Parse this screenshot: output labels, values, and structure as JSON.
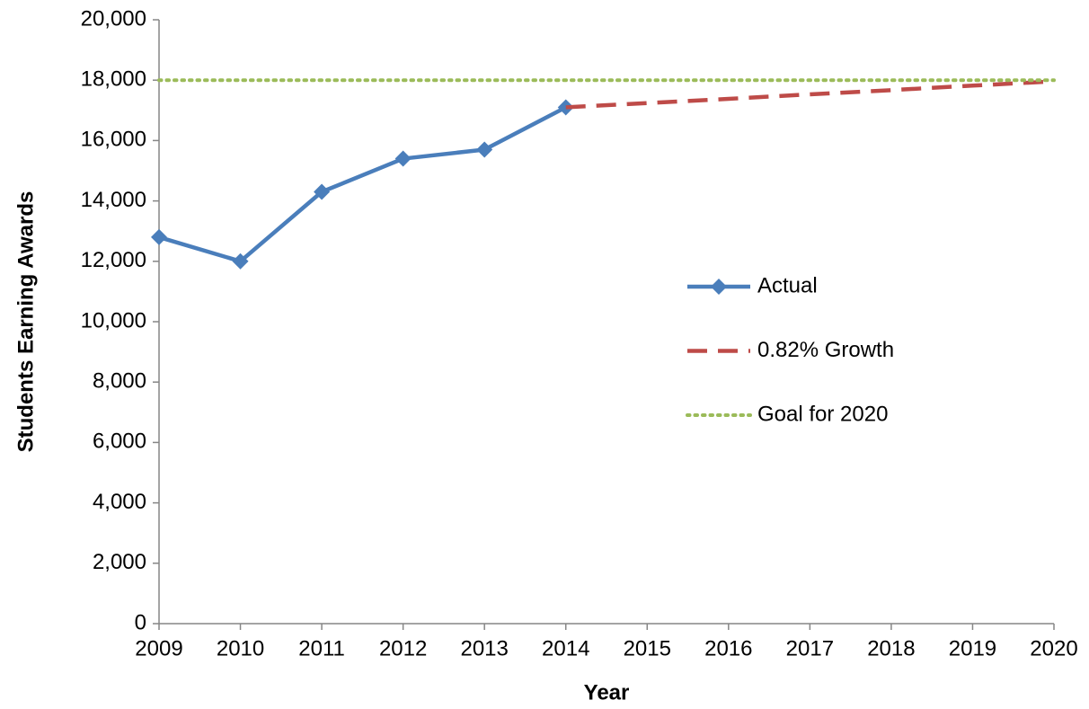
{
  "chart_data": {
    "type": "line",
    "x_label": "Year",
    "y_label": "Students Earning Awards",
    "x": [
      2009,
      2010,
      2011,
      2012,
      2013,
      2014,
      2015,
      2016,
      2017,
      2018,
      2019,
      2020
    ],
    "xlim": [
      2009,
      2020
    ],
    "xticks": [
      2009,
      2010,
      2011,
      2012,
      2013,
      2014,
      2015,
      2016,
      2017,
      2018,
      2019,
      2020
    ],
    "ylim": [
      0,
      20000
    ],
    "yticks": [
      0,
      {
        "value": 2000,
        "label": "2,000"
      },
      {
        "value": 4000,
        "label": "4,000"
      },
      {
        "value": 6000,
        "label": "6,000"
      },
      {
        "value": 8000,
        "label": "8,000"
      },
      {
        "value": 10000,
        "label": "10,000"
      },
      {
        "value": 12000,
        "label": "12,000"
      },
      {
        "value": 14000,
        "label": "14,000"
      },
      {
        "value": 16000,
        "label": "16,000"
      },
      {
        "value": 18000,
        "label": "18,000"
      },
      {
        "value": 20000,
        "label": "20,000"
      }
    ],
    "grid": false,
    "legend_position": "right",
    "series": [
      {
        "name": "Actual",
        "color": "#4a7ebb",
        "dash": "solid",
        "marker": "diamond",
        "values": [
          12800,
          12000,
          14300,
          15400,
          15700,
          17100,
          null,
          null,
          null,
          null,
          null,
          null
        ]
      },
      {
        "name": "0.82% Growth",
        "color": "#be4b48",
        "dash": "dashed",
        "marker": "none",
        "values": [
          null,
          null,
          null,
          null,
          null,
          17100,
          17240,
          17380,
          17530,
          17670,
          17820,
          17960
        ]
      },
      {
        "name": "Goal for 2020",
        "color": "#9bbb59",
        "dash": "dotted",
        "marker": "none",
        "values": [
          18000,
          18000,
          18000,
          18000,
          18000,
          18000,
          18000,
          18000,
          18000,
          18000,
          18000,
          18000
        ]
      }
    ]
  }
}
